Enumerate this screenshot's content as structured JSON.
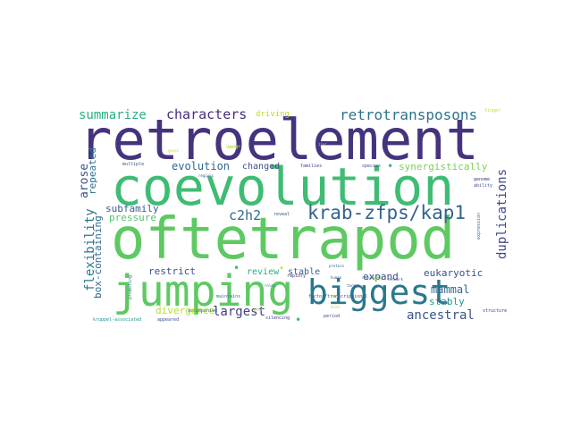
{
  "words": [
    {
      "text": "retroelement",
      "color": "#46337e"
    },
    {
      "text": "coevolution",
      "color": "#3fbc73"
    },
    {
      "text": "oftetrapod",
      "color": "#5ec962"
    },
    {
      "text": "jumping",
      "color": "#5ec962"
    },
    {
      "text": "biggest",
      "color": "#2a788e"
    },
    {
      "text": "krab-zfps/kap1",
      "color": "#33638d"
    },
    {
      "text": "retrotransposons",
      "color": "#2c728e"
    },
    {
      "text": "characters",
      "color": "#472d7b"
    },
    {
      "text": "summarize",
      "color": "#2ab07f"
    },
    {
      "text": "evolution",
      "color": "#31688e"
    },
    {
      "text": "c2h2",
      "color": "#2f6c8e"
    },
    {
      "text": "subfamily",
      "color": "#33638d"
    },
    {
      "text": "pressure",
      "color": "#52c569"
    },
    {
      "text": "divergence",
      "color": "#b5de2b"
    },
    {
      "text": "largest",
      "color": "#433e85"
    },
    {
      "text": "restrict",
      "color": "#3b528b"
    },
    {
      "text": "review",
      "color": "#27ad81"
    },
    {
      "text": "stable",
      "color": "#33638d"
    },
    {
      "text": "expand",
      "color": "#3e4989"
    },
    {
      "text": "eukaryotic",
      "color": "#3b528b"
    },
    {
      "text": "mammal",
      "color": "#31688e"
    },
    {
      "text": "stably",
      "color": "#21918c"
    },
    {
      "text": "ancestral",
      "color": "#3b528b"
    },
    {
      "text": "changed",
      "color": "#3b528b"
    },
    {
      "text": "synergistically",
      "color": "#7ad151"
    },
    {
      "text": "driving",
      "color": "#b5de2b"
    },
    {
      "text": "arose",
      "color": "#3b528b"
    },
    {
      "text": "repeated",
      "color": "#2c728e"
    },
    {
      "text": "flexibility",
      "color": "#2a788e"
    },
    {
      "text": "box-containing",
      "color": "#31688e"
    },
    {
      "text": "duplications",
      "color": "#3e4989"
    },
    {
      "text": "families",
      "color": "#443983"
    },
    {
      "text": "species",
      "color": "#3e4989"
    },
    {
      "text": "multiple",
      "color": "#3b528b"
    },
    {
      "text": "accompanied",
      "color": "#2c728e"
    },
    {
      "text": "maintains",
      "color": "#2c728e"
    },
    {
      "text": "reveal",
      "color": "#3b528b"
    },
    {
      "text": "rapidly",
      "color": "#46337e"
    },
    {
      "text": "silencing",
      "color": "#443983"
    },
    {
      "text": "period",
      "color": "#3e4989"
    },
    {
      "text": "kruppel-associated",
      "color": "#21918c"
    },
    {
      "text": "appeared",
      "color": "#3b528b"
    },
    {
      "text": "promoting",
      "color": "#2c728e"
    },
    {
      "text": "factor/transcriptional",
      "color": "#3b528b"
    },
    {
      "text": "regulatory",
      "color": "#2c728e"
    },
    {
      "text": "network",
      "color": "#3b528b"
    },
    {
      "text": "genome",
      "color": "#46337e"
    },
    {
      "text": "ability",
      "color": "#3b528b"
    },
    {
      "text": "expression",
      "color": "#2c728e"
    },
    {
      "text": "structure",
      "color": "#443983"
    },
    {
      "text": "finger",
      "color": "#bddf26"
    },
    {
      "text": "human",
      "color": "#3b528b"
    },
    {
      "text": "protein",
      "color": "#31688e"
    },
    {
      "text": "roles",
      "color": "#2c728e"
    },
    {
      "text": "dna",
      "color": "#c8e020"
    },
    {
      "text": "zinc",
      "color": "#c8e020"
    },
    {
      "text": "lineage",
      "color": "#bddf26"
    },
    {
      "text": "genes",
      "color": "#c8e020"
    },
    {
      "text": "target",
      "color": "#3b528b"
    },
    {
      "text": "bind",
      "color": "#bddf26"
    },
    {
      "text": "role",
      "color": "#c8e020"
    },
    {
      "text": "host",
      "color": "#b5de2b"
    },
    {
      "text": "among",
      "color": "#b5de2b"
    },
    {
      "text": "regions",
      "color": "#3b528b"
    },
    {
      "text": "•",
      "color": "#3fbc73"
    },
    {
      "text": "•",
      "color": "#3fbc73"
    },
    {
      "text": "•",
      "color": "#3fbc73"
    },
    {
      "text": "•",
      "color": "#c8e020"
    }
  ]
}
